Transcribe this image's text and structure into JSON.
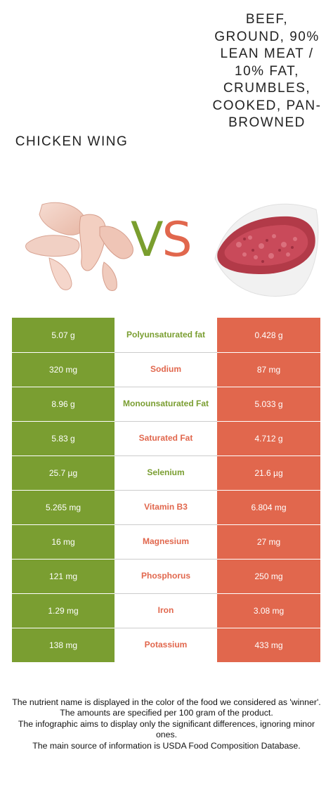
{
  "colors": {
    "left_food": "#7a9e31",
    "right_food": "#e1674d",
    "separator": "#cccccc"
  },
  "header": {
    "left_food_name": "Chicken wing",
    "right_food_name": "Beef, ground, 90% lean meat / 10% fat, crumbles, cooked, pan-browned",
    "vs_v": "V",
    "vs_s": "S"
  },
  "images": {
    "left": "raw-chicken-wings-photo",
    "right": "ground-beef-photo"
  },
  "rows": [
    {
      "left": "5.07 g",
      "nutrient": "Polyunsaturated fat",
      "right": "0.428 g",
      "winner": "left"
    },
    {
      "left": "320 mg",
      "nutrient": "Sodium",
      "right": "87 mg",
      "winner": "right"
    },
    {
      "left": "8.96 g",
      "nutrient": "Monounsaturated Fat",
      "right": "5.033 g",
      "winner": "left"
    },
    {
      "left": "5.83 g",
      "nutrient": "Saturated Fat",
      "right": "4.712 g",
      "winner": "right"
    },
    {
      "left": "25.7 µg",
      "nutrient": "Selenium",
      "right": "21.6 µg",
      "winner": "left"
    },
    {
      "left": "5.265 mg",
      "nutrient": "Vitamin B3",
      "right": "6.804 mg",
      "winner": "right"
    },
    {
      "left": "16 mg",
      "nutrient": "Magnesium",
      "right": "27 mg",
      "winner": "right"
    },
    {
      "left": "121 mg",
      "nutrient": "Phosphorus",
      "right": "250 mg",
      "winner": "right"
    },
    {
      "left": "1.29 mg",
      "nutrient": "Iron",
      "right": "3.08 mg",
      "winner": "right"
    },
    {
      "left": "138 mg",
      "nutrient": "Potassium",
      "right": "433 mg",
      "winner": "right"
    }
  ],
  "footer": [
    "The nutrient name is displayed in the color of the food we considered as 'winner'.",
    "The amounts are specified per 100 gram of the product.",
    "The infographic aims to display only the significant differences, ignoring minor ones.",
    "The main source of information is USDA Food Composition Database."
  ]
}
